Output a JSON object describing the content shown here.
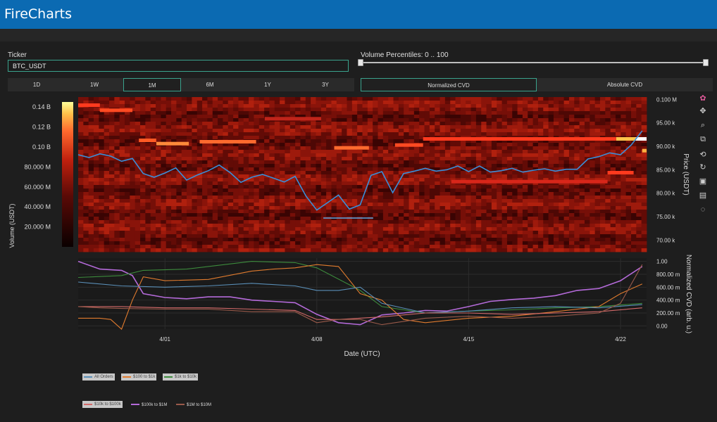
{
  "app": {
    "title": "FireCharts"
  },
  "controls": {
    "ticker_label": "Ticker",
    "ticker_value": "BTC_USDT",
    "volume_label": "Volume Percentiles: 0 .. 100",
    "timeframes": [
      "1D",
      "1W",
      "1M",
      "6M",
      "1Y",
      "3Y"
    ],
    "timeframe_selected": "1M",
    "cvd_modes": [
      "Normalized CVD",
      "Absolute CVD"
    ],
    "cvd_selected": "Normalized CVD",
    "volume_percentile_range": [
      0,
      100
    ]
  },
  "toolbar": {
    "icons": [
      "plotly-logo-icon",
      "pan-icon",
      "zoom-icon",
      "compare-icon",
      "autoscale-icon",
      "reset-icon",
      "download-icon",
      "hover-icon",
      "spike-icon"
    ]
  },
  "legend": {
    "items": [
      {
        "label": "All Orders",
        "color": "#5a8fb8",
        "chip": true
      },
      {
        "label": "$100 to $1k",
        "color": "#e07b2e",
        "chip": true
      },
      {
        "label": "$1k to $10k",
        "color": "#3d8c3d",
        "chip": true
      },
      {
        "label": "$10k to $100k",
        "color": "#d46a6a",
        "chip": true
      },
      {
        "label": "$100k to $1M",
        "color": "#b46ad9",
        "chip": false
      },
      {
        "label": "$1M to $10M",
        "color": "#9a5a4a",
        "chip": false
      }
    ]
  },
  "chart_data": [
    {
      "type": "heatmap",
      "title": "",
      "xlabel": "Date (UTC)",
      "ylabel": "Price (USDT)",
      "colorbar_label": "Volume (USDT)",
      "colorbar_ticks": [
        "20.000 M",
        "40.000 M",
        "60.000 M",
        "80.000 M",
        "0.10 B",
        "0.12 B",
        "0.14 B"
      ],
      "colorbar_tick_values": [
        20000000,
        40000000,
        60000000,
        80000000,
        100000000,
        120000000,
        140000000
      ],
      "colorbar_range": [
        0,
        145000000
      ],
      "y_ticks": [
        "70.00 k",
        "75.00 k",
        "80.00 k",
        "85.00 k",
        "90.00 k",
        "95.00 k",
        "0.100 M"
      ],
      "y_tick_values": [
        70000,
        75000,
        80000,
        85000,
        90000,
        95000,
        100000
      ],
      "ylim": [
        67500,
        100500
      ],
      "x_ticks": [
        "4/01",
        "4/08",
        "4/15",
        "4/22"
      ],
      "x_tick_values": [
        4,
        11,
        18,
        25
      ],
      "xlim": [
        0,
        26.2
      ],
      "price_series_color": "#3a8fd9",
      "price_series": [
        [
          0,
          88200
        ],
        [
          0.5,
          87600
        ],
        [
          1,
          88400
        ],
        [
          1.5,
          87900
        ],
        [
          2,
          86800
        ],
        [
          2.5,
          87400
        ],
        [
          3,
          84200
        ],
        [
          3.5,
          83400
        ],
        [
          4,
          84300
        ],
        [
          4.5,
          85400
        ],
        [
          5,
          82800
        ],
        [
          5.5,
          83900
        ],
        [
          6,
          84800
        ],
        [
          6.5,
          86000
        ],
        [
          7,
          84400
        ],
        [
          7.5,
          82300
        ],
        [
          8,
          83400
        ],
        [
          8.5,
          84000
        ],
        [
          9,
          83200
        ],
        [
          9.5,
          82400
        ],
        [
          10,
          83600
        ],
        [
          10.5,
          79400
        ],
        [
          11,
          76400
        ],
        [
          11.5,
          78000
        ],
        [
          12,
          79600
        ],
        [
          12.5,
          76600
        ],
        [
          13,
          77500
        ],
        [
          13.5,
          83800
        ],
        [
          14,
          84600
        ],
        [
          14.5,
          80100
        ],
        [
          15,
          84200
        ],
        [
          15.5,
          84700
        ],
        [
          16,
          85300
        ],
        [
          16.5,
          84700
        ],
        [
          17,
          85000
        ],
        [
          17.5,
          85800
        ],
        [
          18,
          84600
        ],
        [
          18.5,
          85800
        ],
        [
          19,
          84500
        ],
        [
          19.5,
          84800
        ],
        [
          20,
          85300
        ],
        [
          20.5,
          84500
        ],
        [
          21,
          84900
        ],
        [
          21.5,
          85200
        ],
        [
          22,
          84700
        ],
        [
          22.5,
          85100
        ],
        [
          23,
          85100
        ],
        [
          23.5,
          87300
        ],
        [
          24,
          87800
        ],
        [
          24.5,
          88600
        ],
        [
          25,
          88200
        ],
        [
          25.5,
          90300
        ],
        [
          26,
          93300
        ]
      ],
      "support_line": {
        "x": [
          11.3,
          13.6
        ],
        "y": 74700
      }
    },
    {
      "type": "line",
      "title": "",
      "xlabel": "Date (UTC)",
      "ylabel": "Normalized CVD (arb. u.)",
      "y_ticks": [
        "0.00",
        "200.00 m",
        "400.00 m",
        "600.00 m",
        "800.00 m",
        "1.00"
      ],
      "y_tick_values": [
        0,
        0.2,
        0.4,
        0.6,
        0.8,
        1.0
      ],
      "ylim": [
        -0.05,
        1.05
      ],
      "x_ticks": [
        "4/01",
        "4/08",
        "4/15",
        "4/22"
      ],
      "x_tick_values": [
        4,
        11,
        18,
        25
      ],
      "xlim": [
        0,
        26.2
      ],
      "series": [
        {
          "color": "#b46ad9",
          "values": [
            [
              0,
              1.0
            ],
            [
              1,
              0.88
            ],
            [
              2,
              0.86
            ],
            [
              2.5,
              0.78
            ],
            [
              3,
              0.5
            ],
            [
              4,
              0.44
            ],
            [
              5,
              0.42
            ],
            [
              6,
              0.45
            ],
            [
              7,
              0.45
            ],
            [
              8,
              0.4
            ],
            [
              9,
              0.38
            ],
            [
              10,
              0.36
            ],
            [
              11,
              0.18
            ],
            [
              12,
              0.05
            ],
            [
              13,
              0.02
            ],
            [
              14,
              0.17
            ],
            [
              15,
              0.2
            ],
            [
              16,
              0.24
            ],
            [
              17,
              0.23
            ],
            [
              18,
              0.3
            ],
            [
              19,
              0.38
            ],
            [
              20,
              0.41
            ],
            [
              21,
              0.43
            ],
            [
              22,
              0.47
            ],
            [
              23,
              0.55
            ],
            [
              24,
              0.58
            ],
            [
              25,
              0.7
            ],
            [
              26,
              0.92
            ]
          ]
        },
        {
          "color": "#3d8c3d",
          "values": [
            [
              0,
              0.75
            ],
            [
              2,
              0.78
            ],
            [
              3,
              0.86
            ],
            [
              5,
              0.88
            ],
            [
              8,
              1.0
            ],
            [
              10,
              0.98
            ],
            [
              11,
              0.9
            ],
            [
              13,
              0.55
            ],
            [
              14,
              0.3
            ],
            [
              16,
              0.2
            ],
            [
              18,
              0.23
            ],
            [
              20,
              0.25
            ],
            [
              22,
              0.28
            ],
            [
              24,
              0.3
            ],
            [
              26,
              0.35
            ]
          ]
        },
        {
          "color": "#e07b2e",
          "values": [
            [
              0,
              0.12
            ],
            [
              1,
              0.12
            ],
            [
              1.5,
              0.1
            ],
            [
              2,
              -0.05
            ],
            [
              2.5,
              0.4
            ],
            [
              3,
              0.76
            ],
            [
              4,
              0.7
            ],
            [
              6,
              0.72
            ],
            [
              8,
              0.85
            ],
            [
              9,
              0.88
            ],
            [
              10,
              0.9
            ],
            [
              11,
              0.95
            ],
            [
              12,
              0.92
            ],
            [
              13,
              0.5
            ],
            [
              14,
              0.4
            ],
            [
              15,
              0.1
            ],
            [
              16,
              0.05
            ],
            [
              18,
              0.12
            ],
            [
              20,
              0.15
            ],
            [
              22,
              0.22
            ],
            [
              24,
              0.3
            ],
            [
              25,
              0.5
            ],
            [
              26,
              0.65
            ]
          ]
        },
        {
          "color": "#5a8fb8",
          "values": [
            [
              0,
              0.68
            ],
            [
              2,
              0.62
            ],
            [
              4,
              0.6
            ],
            [
              6,
              0.62
            ],
            [
              8,
              0.66
            ],
            [
              10,
              0.62
            ],
            [
              11,
              0.55
            ],
            [
              12,
              0.55
            ],
            [
              13,
              0.6
            ],
            [
              14,
              0.35
            ],
            [
              16,
              0.2
            ],
            [
              18,
              0.23
            ],
            [
              20,
              0.28
            ],
            [
              22,
              0.3
            ],
            [
              24,
              0.28
            ],
            [
              26,
              0.33
            ]
          ]
        },
        {
          "color": "#d46a6a",
          "values": [
            [
              0,
              0.3
            ],
            [
              2,
              0.3
            ],
            [
              4,
              0.28
            ],
            [
              6,
              0.28
            ],
            [
              8,
              0.26
            ],
            [
              10,
              0.24
            ],
            [
              11,
              0.1
            ],
            [
              12,
              0.1
            ],
            [
              14,
              0.14
            ],
            [
              16,
              0.2
            ],
            [
              18,
              0.2
            ],
            [
              20,
              0.18
            ],
            [
              22,
              0.2
            ],
            [
              24,
              0.22
            ],
            [
              26,
              0.28
            ]
          ]
        },
        {
          "color": "#9a5a4a",
          "values": [
            [
              0,
              0.3
            ],
            [
              1,
              0.28
            ],
            [
              2,
              0.27
            ],
            [
              4,
              0.26
            ],
            [
              6,
              0.26
            ],
            [
              8,
              0.22
            ],
            [
              10,
              0.22
            ],
            [
              11,
              0.05
            ],
            [
              12,
              0.1
            ],
            [
              13,
              0.1
            ],
            [
              14,
              0.02
            ],
            [
              16,
              0.12
            ],
            [
              18,
              0.15
            ],
            [
              20,
              0.12
            ],
            [
              22,
              0.15
            ],
            [
              24,
              0.2
            ],
            [
              25,
              0.35
            ],
            [
              26,
              0.95
            ]
          ]
        }
      ]
    }
  ]
}
